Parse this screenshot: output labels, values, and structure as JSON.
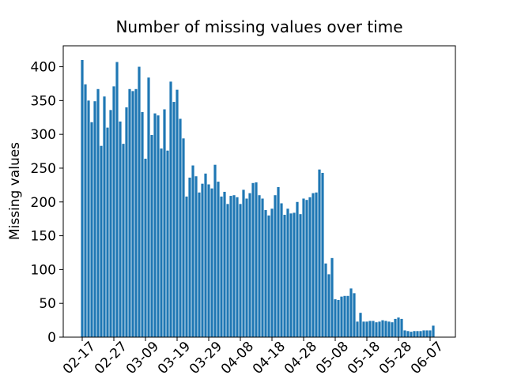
{
  "chart_data": {
    "type": "bar",
    "title": "Number of missing values over time",
    "ylabel": "Missing values",
    "color": "#1f77b4",
    "x": [
      "02-17",
      "02-18",
      "02-19",
      "02-20",
      "02-21",
      "02-22",
      "02-23",
      "02-24",
      "02-25",
      "02-26",
      "02-27",
      "02-28",
      "03-01",
      "03-02",
      "03-03",
      "03-04",
      "03-05",
      "03-06",
      "03-07",
      "03-08",
      "03-09",
      "03-10",
      "03-11",
      "03-12",
      "03-13",
      "03-14",
      "03-15",
      "03-16",
      "03-17",
      "03-18",
      "03-19",
      "03-20",
      "03-21",
      "03-22",
      "03-23",
      "03-24",
      "03-25",
      "03-26",
      "03-27",
      "03-28",
      "03-29",
      "03-30",
      "03-31",
      "04-01",
      "04-02",
      "04-03",
      "04-04",
      "04-05",
      "04-06",
      "04-07",
      "04-08",
      "04-09",
      "04-10",
      "04-11",
      "04-12",
      "04-13",
      "04-14",
      "04-15",
      "04-16",
      "04-17",
      "04-18",
      "04-19",
      "04-20",
      "04-21",
      "04-22",
      "04-23",
      "04-24",
      "04-25",
      "04-26",
      "04-27",
      "04-28",
      "04-29",
      "04-30",
      "05-01",
      "05-02",
      "05-03",
      "05-04",
      "05-05",
      "05-06",
      "05-07",
      "05-08",
      "05-09",
      "05-10",
      "05-11",
      "05-12",
      "05-13",
      "05-14",
      "05-15",
      "05-16",
      "05-17",
      "05-18",
      "05-19",
      "05-20",
      "05-21",
      "05-22",
      "05-23",
      "05-24",
      "05-25",
      "05-26",
      "05-27",
      "05-28",
      "05-29",
      "05-30",
      "05-31",
      "06-01",
      "06-02",
      "06-03",
      "06-04",
      "06-05",
      "06-06",
      "06-07",
      "06-08"
    ],
    "values": [
      410,
      374,
      350,
      318,
      349,
      367,
      283,
      356,
      310,
      336,
      371,
      407,
      319,
      286,
      340,
      367,
      364,
      367,
      400,
      333,
      264,
      384,
      299,
      331,
      328,
      279,
      337,
      276,
      378,
      348,
      366,
      323,
      294,
      208,
      236,
      254,
      238,
      214,
      227,
      242,
      226,
      220,
      255,
      230,
      208,
      215,
      197,
      209,
      210,
      207,
      197,
      218,
      205,
      213,
      228,
      229,
      210,
      205,
      188,
      180,
      190,
      210,
      222,
      198,
      181,
      190,
      183,
      184,
      200,
      182,
      205,
      203,
      207,
      213,
      214,
      248,
      243,
      109,
      93,
      117,
      56,
      55,
      60,
      61,
      61,
      72,
      65,
      23,
      36,
      23,
      23,
      24,
      24,
      22,
      23,
      25,
      24,
      23,
      22,
      27,
      29,
      27,
      10,
      9,
      8,
      9,
      9,
      9,
      10,
      10,
      10,
      17
    ],
    "xlim": [
      "02-11",
      "06-15"
    ],
    "xticks": [
      "02-17",
      "02-27",
      "03-09",
      "03-19",
      "03-29",
      "04-08",
      "04-18",
      "04-28",
      "05-08",
      "05-18",
      "05-28",
      "06-07"
    ],
    "ylim": [
      0,
      431
    ],
    "yticks": [
      0,
      50,
      100,
      150,
      200,
      250,
      300,
      350,
      400
    ]
  }
}
